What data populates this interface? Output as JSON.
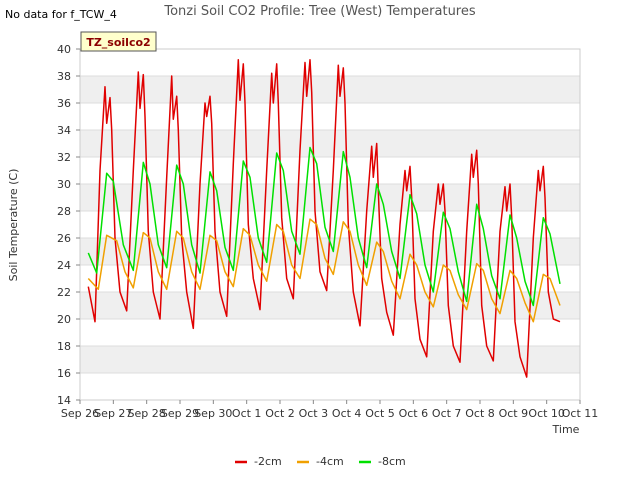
{
  "no_data_note": "No data for f_TCW_4",
  "tag_label": "TZ_soilco2",
  "chart_data": {
    "type": "line",
    "title": "Tonzi Soil CO2 Profile: Tree (West) Temperatures",
    "xlabel": "Time",
    "ylabel": "Soil Temperature (C)",
    "ylim": [
      14,
      40
    ],
    "xlim": [
      0,
      15
    ],
    "yticks": [
      14,
      16,
      18,
      20,
      22,
      24,
      26,
      28,
      30,
      32,
      34,
      36,
      38,
      40
    ],
    "xtick_positions": [
      0,
      1,
      2,
      3,
      4,
      5,
      6,
      7,
      8,
      9,
      10,
      11,
      12,
      13,
      14,
      15
    ],
    "xtick_labels": [
      "Sep 26",
      "Sep 27",
      "Sep 28",
      "Sep 29",
      "Sep 30",
      "Oct 1",
      "Oct 2",
      "Oct 3",
      "Oct 4",
      "Oct 5",
      "Oct 6",
      "Oct 7",
      "Oct 8",
      "Oct 9",
      "Oct 10",
      "Oct 11"
    ],
    "grid": true,
    "legend_position": "bottom",
    "series": [
      {
        "name": "-2cm",
        "color": "#e00000",
        "x": [
          0.25,
          0.45,
          0.6,
          0.75,
          0.8,
          0.9,
          0.95,
          1.05,
          1.2,
          1.4,
          1.6,
          1.75,
          1.8,
          1.9,
          1.95,
          2.05,
          2.2,
          2.4,
          2.6,
          2.75,
          2.8,
          2.9,
          2.95,
          3.05,
          3.2,
          3.4,
          3.6,
          3.75,
          3.8,
          3.9,
          3.95,
          4.05,
          4.2,
          4.4,
          4.6,
          4.75,
          4.8,
          4.9,
          4.95,
          5.05,
          5.2,
          5.4,
          5.6,
          5.75,
          5.8,
          5.9,
          5.95,
          6.05,
          6.2,
          6.4,
          6.6,
          6.75,
          6.8,
          6.9,
          6.95,
          7.05,
          7.2,
          7.4,
          7.6,
          7.75,
          7.8,
          7.9,
          7.95,
          8.05,
          8.2,
          8.4,
          8.6,
          8.75,
          8.8,
          8.9,
          8.95,
          9.05,
          9.2,
          9.4,
          9.6,
          9.75,
          9.8,
          9.9,
          9.95,
          10.05,
          10.2,
          10.4,
          10.6,
          10.75,
          10.8,
          10.9,
          10.95,
          11.05,
          11.2,
          11.4,
          11.6,
          11.75,
          11.8,
          11.9,
          11.95,
          12.05,
          12.2,
          12.4,
          12.6,
          12.75,
          12.8,
          12.9,
          12.95,
          13.05,
          13.2,
          13.4,
          13.6,
          13.75,
          13.8,
          13.9,
          13.95,
          14.05,
          14.2,
          14.4
        ],
        "values": [
          22.4,
          19.8,
          31.0,
          37.2,
          34.5,
          36.4,
          34.0,
          26.0,
          22.0,
          20.6,
          31.0,
          38.3,
          35.6,
          38.1,
          35.0,
          26.5,
          22.0,
          20.0,
          30.5,
          38.0,
          34.8,
          36.5,
          34.0,
          26.0,
          22.0,
          19.3,
          30.0,
          36.0,
          35.0,
          36.5,
          34.5,
          26.5,
          22.0,
          20.2,
          31.5,
          39.2,
          36.2,
          38.9,
          36.0,
          27.0,
          23.0,
          20.7,
          31.0,
          38.2,
          36.0,
          38.9,
          36.0,
          27.5,
          23.0,
          21.5,
          32.5,
          39.0,
          36.5,
          39.2,
          36.8,
          28.0,
          23.5,
          22.1,
          31.0,
          38.8,
          36.5,
          38.6,
          36.0,
          27.0,
          22.0,
          19.5,
          28.0,
          32.8,
          30.5,
          33.0,
          29.5,
          23.0,
          20.5,
          18.8,
          27.0,
          31.0,
          29.5,
          31.3,
          29.0,
          21.5,
          18.5,
          17.2,
          26.5,
          30.0,
          28.5,
          30.0,
          28.0,
          21.0,
          18.0,
          16.8,
          26.5,
          32.2,
          30.5,
          32.5,
          30.0,
          21.0,
          18.0,
          16.9,
          26.5,
          29.8,
          28.0,
          30.0,
          27.5,
          19.8,
          17.2,
          15.7,
          26.0,
          31.0,
          29.5,
          31.3,
          29.0,
          22.0,
          20.0,
          19.8
        ]
      },
      {
        "name": "-4cm",
        "color": "#f0a000",
        "x": [
          0.25,
          0.55,
          0.8,
          1.1,
          1.35,
          1.6,
          1.9,
          2.1,
          2.35,
          2.6,
          2.9,
          3.1,
          3.35,
          3.6,
          3.9,
          4.1,
          4.35,
          4.6,
          4.9,
          5.1,
          5.35,
          5.6,
          5.9,
          6.1,
          6.35,
          6.6,
          6.9,
          7.1,
          7.35,
          7.6,
          7.9,
          8.1,
          8.35,
          8.6,
          8.9,
          9.1,
          9.35,
          9.6,
          9.9,
          10.1,
          10.35,
          10.6,
          10.9,
          11.1,
          11.35,
          11.6,
          11.9,
          12.1,
          12.35,
          12.6,
          12.9,
          13.1,
          13.35,
          13.6,
          13.9,
          14.1,
          14.4
        ],
        "values": [
          23.0,
          22.2,
          26.2,
          25.8,
          23.5,
          22.3,
          26.4,
          26.0,
          23.5,
          22.2,
          26.5,
          26.0,
          23.5,
          22.2,
          26.2,
          25.8,
          23.5,
          22.4,
          26.7,
          26.2,
          24.0,
          22.8,
          27.0,
          26.5,
          24.0,
          23.0,
          27.4,
          27.0,
          24.5,
          23.3,
          27.2,
          26.5,
          24.0,
          22.5,
          25.7,
          25.0,
          22.8,
          21.5,
          24.8,
          24.0,
          22.0,
          20.9,
          24.0,
          23.6,
          21.8,
          20.7,
          24.1,
          23.6,
          21.5,
          20.4,
          23.6,
          23.0,
          21.2,
          19.8,
          23.3,
          23.0,
          21.0
        ]
      },
      {
        "name": "-8cm",
        "color": "#00e000",
        "x": [
          0.25,
          0.5,
          0.8,
          1.0,
          1.3,
          1.6,
          1.9,
          2.1,
          2.35,
          2.6,
          2.9,
          3.1,
          3.35,
          3.6,
          3.9,
          4.1,
          4.35,
          4.6,
          4.9,
          5.1,
          5.35,
          5.6,
          5.9,
          6.1,
          6.35,
          6.6,
          6.9,
          7.1,
          7.35,
          7.6,
          7.9,
          8.1,
          8.35,
          8.6,
          8.9,
          9.1,
          9.35,
          9.6,
          9.9,
          10.1,
          10.35,
          10.6,
          10.9,
          11.1,
          11.35,
          11.6,
          11.9,
          12.1,
          12.35,
          12.6,
          12.9,
          13.1,
          13.35,
          13.6,
          13.9,
          14.1,
          14.4
        ],
        "values": [
          24.9,
          23.4,
          30.8,
          30.2,
          25.5,
          23.6,
          31.6,
          30.0,
          25.5,
          23.8,
          31.4,
          30.0,
          25.5,
          23.4,
          30.9,
          29.5,
          25.3,
          23.6,
          31.7,
          30.5,
          26.0,
          24.2,
          32.3,
          31.0,
          26.5,
          24.8,
          32.7,
          31.5,
          26.8,
          25.0,
          32.4,
          30.5,
          26.0,
          23.8,
          30.0,
          28.5,
          25.0,
          23.0,
          29.2,
          27.8,
          24.0,
          22.0,
          27.9,
          26.7,
          23.5,
          21.3,
          28.5,
          26.7,
          23.2,
          21.5,
          27.7,
          26.0,
          22.8,
          21.0,
          27.5,
          26.3,
          22.6
        ]
      }
    ]
  }
}
